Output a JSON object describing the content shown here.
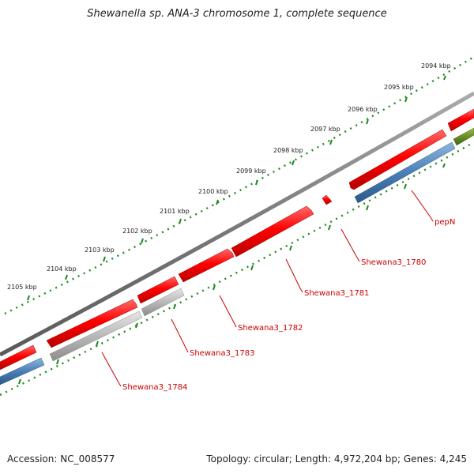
{
  "title": "Shewanella sp. ANA-3 chromosome 1, complete sequence",
  "footer": {
    "accession": "Accession: NC_008577",
    "summary": "Topology: circular; Length: 4,972,204 bp; Genes: 4,245"
  },
  "colors": {
    "backbone": "#808080",
    "tick": "#1f8a1f",
    "gene_forward": "#ff0000",
    "gene_label": "#cc0000",
    "cds": "#4a7fb5",
    "pseudo": "#b0b0b0",
    "other": "#6b8e23"
  },
  "kbp_labels": [
    "2094 kbp",
    "2095 kbp",
    "2096 kbp",
    "2097 kbp",
    "2098 kbp",
    "2099 kbp",
    "2100 kbp",
    "2101 kbp",
    "2102 kbp",
    "2103 kbp",
    "2104 kbp",
    "2105 kbp"
  ],
  "gene_labels": [
    "pepN",
    "Shewana3_1780",
    "Shewana3_1781",
    "Shewana3_1782",
    "Shewana3_1783",
    "Shewana3_1784"
  ]
}
